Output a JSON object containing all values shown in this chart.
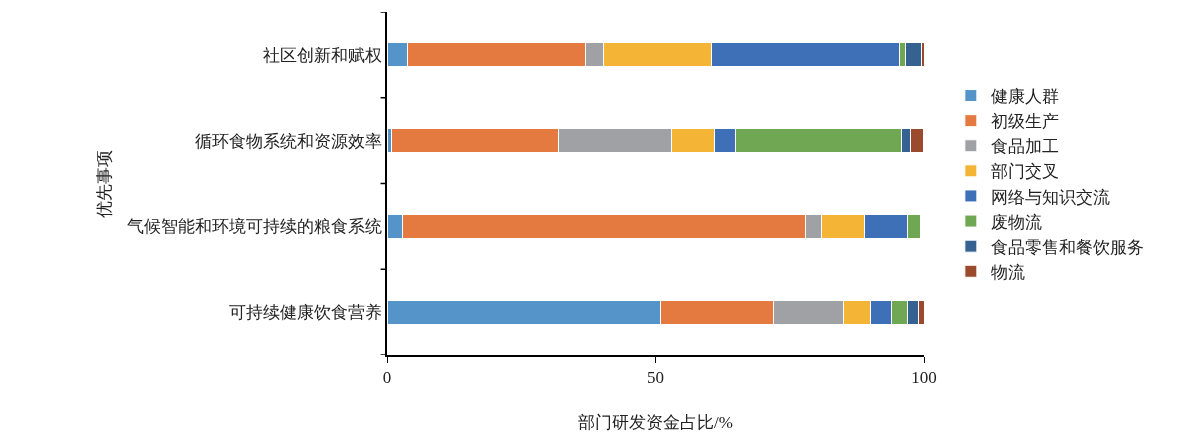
{
  "chart_data": {
    "type": "bar",
    "orientation": "horizontal",
    "stacked": true,
    "xlabel": "部门研发资金占比/%",
    "ylabel": "优先事项",
    "categories": [
      "社区创新和赋权",
      "循环食物系统和资源效率",
      "气候智能和环境可持续的粮食系统",
      "可持续健康饮食营养"
    ],
    "xlim": [
      0,
      100
    ],
    "xticks": [
      0,
      50,
      100
    ],
    "grid": false,
    "legend": "right",
    "series": [
      {
        "name": "健康人群",
        "color": "#5494c9",
        "values": [
          3.9,
          0.9,
          2.9,
          51
        ]
      },
      {
        "name": "初级生产",
        "color": "#e57a41",
        "values": [
          33.1,
          31,
          75,
          21
        ]
      },
      {
        "name": "食品加工",
        "color": "#a0a1a4",
        "values": [
          3.4,
          21,
          3,
          13
        ]
      },
      {
        "name": "部门交叉",
        "color": "#f4b436",
        "values": [
          20,
          8,
          8,
          5
        ]
      },
      {
        "name": "网络与知识交流",
        "color": "#3e70b8",
        "values": [
          35,
          4,
          8,
          4
        ]
      },
      {
        "name": "废物流",
        "color": "#6fa752",
        "values": [
          1.1,
          31,
          2.5,
          3
        ]
      },
      {
        "name": "食品零售和餐饮服务",
        "color": "#356290",
        "values": [
          3,
          1.5,
          null,
          2
        ]
      },
      {
        "name": "物流",
        "color": "#9b4a2d",
        "values": [
          0.5,
          2.5,
          null,
          1
        ]
      }
    ]
  }
}
